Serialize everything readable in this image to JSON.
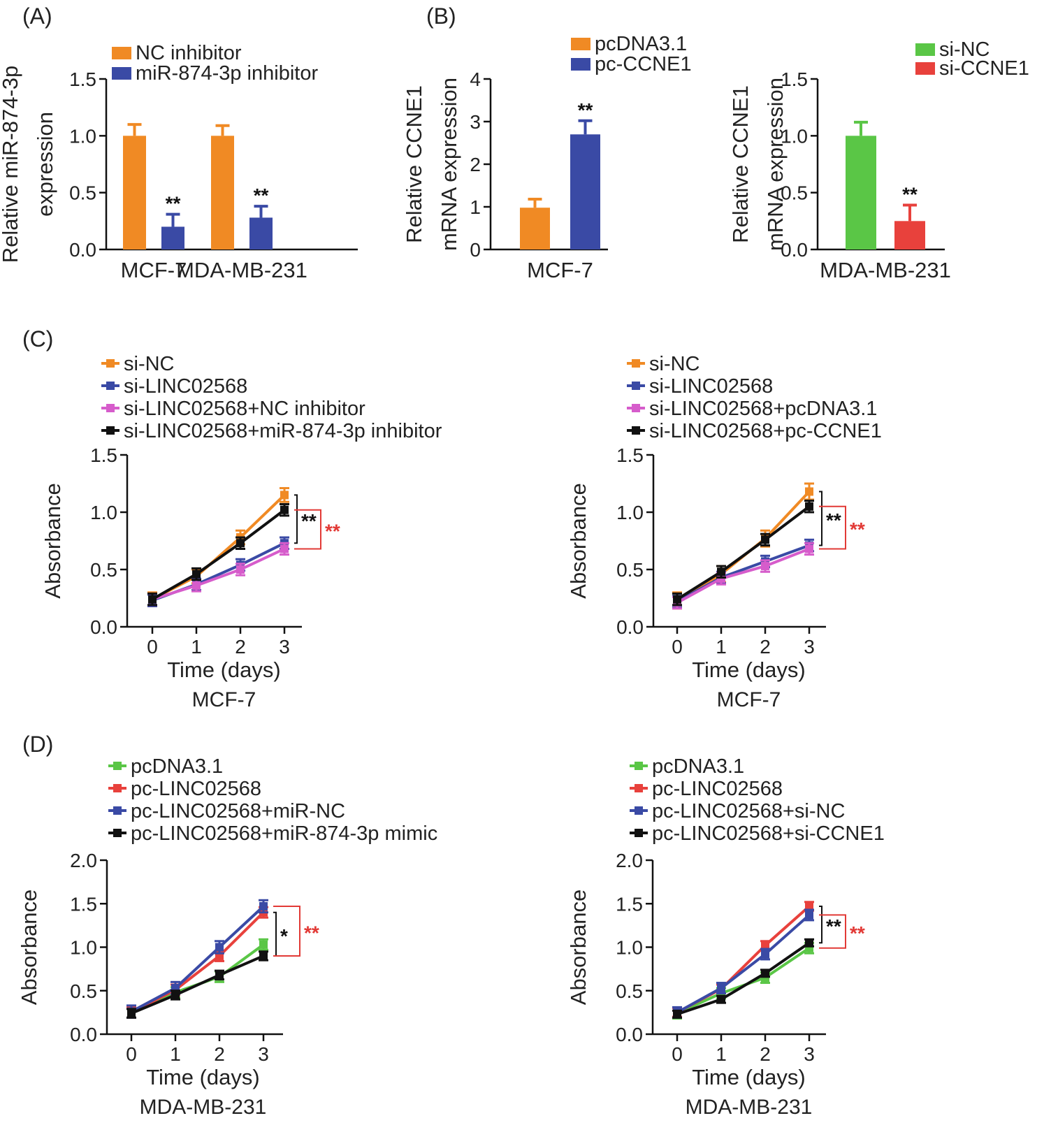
{
  "colors": {
    "orange": "#f08a24",
    "blue": "#3a4aa5",
    "green": "#5ac646",
    "red": "#e8413c",
    "pink": "#d65ccb",
    "black": "#111111",
    "sig_red": "#e23a36"
  },
  "panel_labels": {
    "A": "(A)",
    "B": "(B)",
    "C": "(C)",
    "D": "(D)"
  },
  "chart_data": [
    {
      "id": "A",
      "type": "bar",
      "ylabel_lines": [
        "Relative miR-874-3p",
        "expression"
      ],
      "ylim": [
        0,
        1.5
      ],
      "yticks": [
        "0.0",
        "0.5",
        "1.0",
        "1.5"
      ],
      "categories": [
        "MCF-7",
        "MDA-MB-231"
      ],
      "series": [
        {
          "name": "NC inhibitor",
          "color": "orange",
          "values": [
            1.0,
            1.0
          ],
          "errors": [
            0.1,
            0.09
          ],
          "marks": [
            "",
            ""
          ]
        },
        {
          "name": "miR-874-3p inhibitor",
          "color": "blue",
          "values": [
            0.2,
            0.28
          ],
          "errors": [
            0.11,
            0.1
          ],
          "marks": [
            "**",
            "**"
          ]
        }
      ]
    },
    {
      "id": "B1",
      "type": "bar",
      "ylabel_lines": [
        "Relative CCNE1",
        "mRNA expression"
      ],
      "ylim": [
        0,
        4
      ],
      "yticks": [
        "0",
        "1",
        "2",
        "3",
        "4"
      ],
      "categories": [
        "MCF-7"
      ],
      "series": [
        {
          "name": "pcDNA3.1",
          "color": "orange",
          "values": [
            0.98
          ],
          "errors": [
            0.2
          ],
          "marks": [
            ""
          ]
        },
        {
          "name": "pc-CCNE1",
          "color": "blue",
          "values": [
            2.7
          ],
          "errors": [
            0.32
          ],
          "marks": [
            "**"
          ]
        }
      ]
    },
    {
      "id": "B2",
      "type": "bar",
      "ylabel_lines": [
        "Relative CCNE1",
        "mRNA expression"
      ],
      "ylim": [
        0,
        1.5
      ],
      "yticks": [
        "0.0",
        "0.5",
        "1.0",
        "1.5"
      ],
      "categories": [
        "MDA-MB-231"
      ],
      "series": [
        {
          "name": "si-NC",
          "color": "green",
          "values": [
            1.0
          ],
          "errors": [
            0.12
          ],
          "marks": [
            ""
          ]
        },
        {
          "name": "si-CCNE1",
          "color": "red",
          "values": [
            0.25
          ],
          "errors": [
            0.14
          ],
          "marks": [
            "**"
          ]
        }
      ]
    },
    {
      "id": "C1",
      "type": "line",
      "xlabel": "Time (days)",
      "ylabel": "Absorbance",
      "subtitle": "MCF-7",
      "x": [
        0,
        1,
        2,
        3
      ],
      "xticks": [
        "0",
        "1",
        "2",
        "3"
      ],
      "ylim": [
        0,
        1.5
      ],
      "yticks": [
        "0.0",
        "0.5",
        "1.0",
        "1.5"
      ],
      "series": [
        {
          "name": "si-NC",
          "color": "orange",
          "values": [
            0.24,
            0.44,
            0.78,
            1.15
          ],
          "err": 0.06
        },
        {
          "name": "si-LINC02568",
          "color": "blue",
          "values": [
            0.23,
            0.37,
            0.54,
            0.73
          ],
          "err": 0.05
        },
        {
          "name": "si-LINC02568+NC inhibitor",
          "color": "pink",
          "values": [
            0.24,
            0.36,
            0.5,
            0.68
          ],
          "err": 0.05
        },
        {
          "name": "si-LINC02568+miR-874-3p inhibitor",
          "color": "black",
          "values": [
            0.24,
            0.46,
            0.73,
            1.02
          ],
          "err": 0.05
        }
      ],
      "brackets": [
        {
          "from": 1.15,
          "to": 0.73,
          "offset": 0,
          "label": "**",
          "color": "black"
        },
        {
          "from": 1.02,
          "to": 0.68,
          "offset": 1,
          "label": "**",
          "color": "sig_red"
        }
      ]
    },
    {
      "id": "C2",
      "type": "line",
      "xlabel": "Time (days)",
      "ylabel": "Absorbance",
      "subtitle": "MCF-7",
      "x": [
        0,
        1,
        2,
        3
      ],
      "xticks": [
        "0",
        "1",
        "2",
        "3"
      ],
      "ylim": [
        0,
        1.5
      ],
      "yticks": [
        "0.0",
        "0.5",
        "1.0",
        "1.5"
      ],
      "series": [
        {
          "name": "si-NC",
          "color": "orange",
          "values": [
            0.23,
            0.46,
            0.77,
            1.18
          ],
          "err": 0.07
        },
        {
          "name": "si-LINC02568",
          "color": "blue",
          "values": [
            0.22,
            0.43,
            0.57,
            0.71
          ],
          "err": 0.05
        },
        {
          "name": "si-LINC02568+pcDNA3.1",
          "color": "pink",
          "values": [
            0.21,
            0.42,
            0.53,
            0.68
          ],
          "err": 0.05
        },
        {
          "name": "si-LINC02568+pc-CCNE1",
          "color": "black",
          "values": [
            0.24,
            0.48,
            0.76,
            1.05
          ],
          "err": 0.05
        }
      ],
      "brackets": [
        {
          "from": 1.18,
          "to": 0.71,
          "offset": 0,
          "label": "**",
          "color": "black"
        },
        {
          "from": 1.05,
          "to": 0.68,
          "offset": 1,
          "label": "**",
          "color": "sig_red"
        }
      ]
    },
    {
      "id": "D1",
      "type": "line",
      "xlabel": "Time (days)",
      "ylabel": "Absorbance",
      "subtitle": "MDA-MB-231",
      "x": [
        0,
        1,
        2,
        3
      ],
      "xticks": [
        "0",
        "1",
        "2",
        "3"
      ],
      "ylim": [
        0,
        2.0
      ],
      "yticks": [
        "0.0",
        "0.5",
        "1.0",
        "1.5",
        "2.0"
      ],
      "series": [
        {
          "name": "pcDNA3.1",
          "color": "green",
          "values": [
            0.25,
            0.48,
            0.66,
            1.03
          ],
          "err": 0.06
        },
        {
          "name": "pc-LINC02568",
          "color": "red",
          "values": [
            0.25,
            0.51,
            0.9,
            1.4
          ],
          "err": 0.06
        },
        {
          "name": "pc-LINC02568+miR-NC",
          "color": "blue",
          "values": [
            0.26,
            0.53,
            1.0,
            1.47
          ],
          "err": 0.07
        },
        {
          "name": "pc-LINC02568+miR-874-3p mimic",
          "color": "black",
          "values": [
            0.24,
            0.45,
            0.68,
            0.9
          ],
          "err": 0.05
        }
      ],
      "brackets": [
        {
          "from": 1.4,
          "to": 0.9,
          "offset": 0,
          "label": "*",
          "color": "black"
        },
        {
          "from": 1.47,
          "to": 0.9,
          "offset": 1,
          "label": "**",
          "color": "sig_red"
        }
      ]
    },
    {
      "id": "D2",
      "type": "line",
      "xlabel": "Time (days)",
      "ylabel": "Absorbance",
      "subtitle": "MDA-MB-231",
      "x": [
        0,
        1,
        2,
        3
      ],
      "xticks": [
        "0",
        "1",
        "2",
        "3"
      ],
      "ylim": [
        0,
        2.0
      ],
      "yticks": [
        "0.0",
        "0.5",
        "1.0",
        "1.5",
        "2.0"
      ],
      "series": [
        {
          "name": "pcDNA3.1",
          "color": "green",
          "values": [
            0.24,
            0.47,
            0.65,
            0.99
          ],
          "err": 0.06
        },
        {
          "name": "pc-LINC02568",
          "color": "red",
          "values": [
            0.25,
            0.52,
            1.02,
            1.47
          ],
          "err": 0.05
        },
        {
          "name": "pc-LINC02568+si-NC",
          "color": "blue",
          "values": [
            0.25,
            0.53,
            0.92,
            1.37
          ],
          "err": 0.06
        },
        {
          "name": "pc-LINC02568+si-CCNE1",
          "color": "black",
          "values": [
            0.23,
            0.4,
            0.7,
            1.05
          ],
          "err": 0.04
        }
      ],
      "brackets": [
        {
          "from": 1.47,
          "to": 1.05,
          "offset": 0,
          "label": "**",
          "color": "black"
        },
        {
          "from": 1.37,
          "to": 0.99,
          "offset": 1,
          "label": "**",
          "color": "sig_red"
        }
      ]
    }
  ]
}
